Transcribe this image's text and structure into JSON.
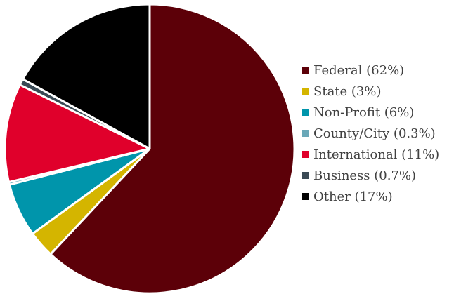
{
  "chart_data": {
    "type": "pie",
    "slices": [
      {
        "label": "Federal (62%)",
        "value": 62,
        "color": "#5c0008"
      },
      {
        "label": "State (3%)",
        "value": 3,
        "color": "#d4b500"
      },
      {
        "label": "Non-Profit (6%)",
        "value": 6,
        "color": "#0095ab"
      },
      {
        "label": "County/City (0.3%)",
        "value": 0.3,
        "color": "#6aa8b8"
      },
      {
        "label": "International (11%)",
        "value": 11,
        "color": "#e0002b"
      },
      {
        "label": "Business (0.7%)",
        "value": 0.7,
        "color": "#3a4a55"
      },
      {
        "label": "Other (17%)",
        "value": 17,
        "color": "#000000"
      }
    ],
    "start_angle": "12 o'clock, clockwise",
    "legend_position": "right"
  }
}
